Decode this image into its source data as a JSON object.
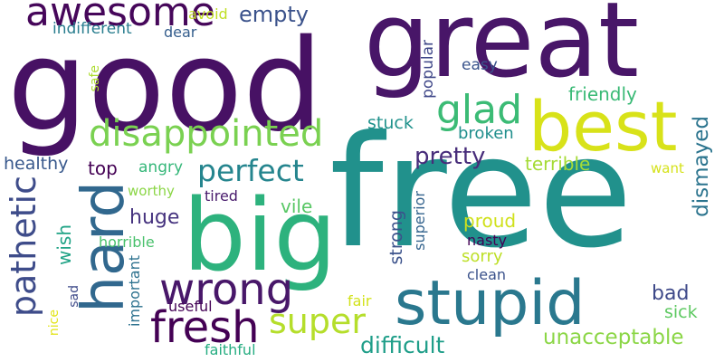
{
  "words": [
    {
      "id": "good",
      "text": "good",
      "color": "#471164"
    },
    {
      "id": "great",
      "text": "great",
      "color": "#481668"
    },
    {
      "id": "free",
      "text": "free",
      "color": "#21918c"
    },
    {
      "id": "big",
      "text": "big",
      "color": "#2db27d"
    },
    {
      "id": "stupid",
      "text": "stupid",
      "color": "#2a788e"
    },
    {
      "id": "best",
      "text": "best",
      "color": "#d8e219"
    },
    {
      "id": "hard",
      "text": "hard",
      "color": "#31688e"
    },
    {
      "id": "awesome",
      "text": "awesome",
      "color": "#46075a"
    },
    {
      "id": "disappointed",
      "text": "disappointed",
      "color": "#7ad151"
    },
    {
      "id": "glad",
      "text": "glad",
      "color": "#3bbb75"
    },
    {
      "id": "perfect",
      "text": "perfect",
      "color": "#25858e"
    },
    {
      "id": "pathetic",
      "text": "pathetic",
      "color": "#3e4c8a"
    },
    {
      "id": "wrong",
      "text": "wrong",
      "color": "#481769"
    },
    {
      "id": "super",
      "text": "super",
      "color": "#b5de2b"
    },
    {
      "id": "fresh",
      "text": "fresh",
      "color": "#440154"
    },
    {
      "id": "empty",
      "text": "empty",
      "color": "#3b528b"
    },
    {
      "id": "avoid",
      "text": "avoid",
      "color": "#c0df25"
    },
    {
      "id": "indifferent",
      "text": "indifferent",
      "color": "#287d8e"
    },
    {
      "id": "dear",
      "text": "dear",
      "color": "#355e8d"
    },
    {
      "id": "easy",
      "text": "easy",
      "color": "#3a548c"
    },
    {
      "id": "popular",
      "text": "popular",
      "color": "#3f4788"
    },
    {
      "id": "safe",
      "text": "safe",
      "color": "#addc30"
    },
    {
      "id": "friendly",
      "text": "friendly",
      "color": "#3aba76"
    },
    {
      "id": "wish",
      "text": "wish",
      "color": "#20a386"
    },
    {
      "id": "dismayed",
      "text": "dismayed",
      "color": "#2b748e"
    },
    {
      "id": "stuck",
      "text": "stuck",
      "color": "#20928c"
    },
    {
      "id": "broken",
      "text": "broken",
      "color": "#218f8d"
    },
    {
      "id": "healthy",
      "text": "healthy",
      "color": "#38588c"
    },
    {
      "id": "top",
      "text": "top",
      "color": "#440154"
    },
    {
      "id": "angry",
      "text": "angry",
      "color": "#35b779"
    },
    {
      "id": "pretty",
      "text": "pretty",
      "color": "#472c7a"
    },
    {
      "id": "terrible",
      "text": "terrible",
      "color": "#a5db36"
    },
    {
      "id": "want",
      "text": "want",
      "color": "#d5e21a"
    },
    {
      "id": "worthy",
      "text": "worthy",
      "color": "#8bd646"
    },
    {
      "id": "tired",
      "text": "tired",
      "color": "#481a6c"
    },
    {
      "id": "vile",
      "text": "vile",
      "color": "#58c765"
    },
    {
      "id": "huge",
      "text": "huge",
      "color": "#46337f"
    },
    {
      "id": "strong",
      "text": "strong",
      "color": "#3b528b"
    },
    {
      "id": "superior",
      "text": "superior",
      "color": "#33638d"
    },
    {
      "id": "proud",
      "text": "proud",
      "color": "#d0e11c"
    },
    {
      "id": "horrible",
      "text": "horrible",
      "color": "#4ac16d"
    },
    {
      "id": "nasty",
      "text": "nasty",
      "color": "#440154"
    },
    {
      "id": "sorry",
      "text": "sorry",
      "color": "#bddf26"
    },
    {
      "id": "sad",
      "text": "sad",
      "color": "#3e4a89"
    },
    {
      "id": "important",
      "text": "important",
      "color": "#2c718e"
    },
    {
      "id": "nice",
      "text": "nice",
      "color": "#e2e418"
    },
    {
      "id": "useful",
      "text": "useful",
      "color": "#450457"
    },
    {
      "id": "fair",
      "text": "fair",
      "color": "#d2e21b"
    },
    {
      "id": "clean",
      "text": "clean",
      "color": "#3b528b"
    },
    {
      "id": "bad",
      "text": "bad",
      "color": "#3e4989"
    },
    {
      "id": "sick",
      "text": "sick",
      "color": "#5ec962"
    },
    {
      "id": "unacceptable",
      "text": "unacceptable",
      "color": "#8bd646"
    },
    {
      "id": "difficult",
      "text": "difficult",
      "color": "#1f9e89"
    },
    {
      "id": "faithful",
      "text": "faithful",
      "color": "#26ad81"
    }
  ]
}
